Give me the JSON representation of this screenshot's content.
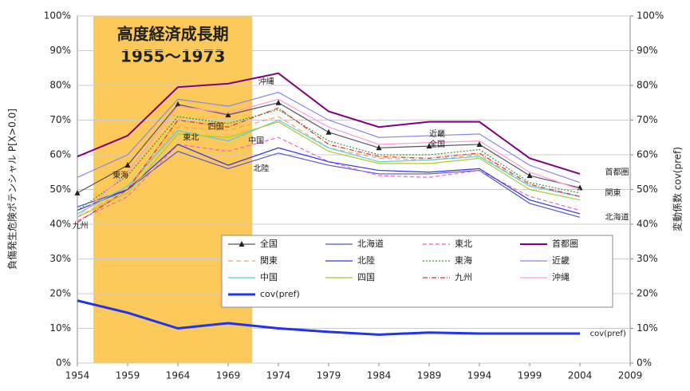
{
  "chart_data": {
    "type": "line",
    "y_label": "負傷発生危険ポテンシャル P[X>0.0]",
    "y2_label": "変動係数 cov(pref)",
    "highlight": {
      "title": "高度経済成長期",
      "subtitle": "1955～1973",
      "color": "#fbc85a",
      "xlim": [
        1955.6,
        1971.4
      ]
    },
    "x": [
      1954,
      1959,
      1964,
      1969,
      1974,
      1979,
      1984,
      1989,
      1994,
      1999,
      2004
    ],
    "xlim": [
      1954,
      2009
    ],
    "xticks": [
      1954,
      1959,
      1964,
      1969,
      1974,
      1979,
      1984,
      1989,
      1994,
      1999,
      2004,
      2009
    ],
    "ylim": [
      0,
      100
    ],
    "yticks": [
      {
        "value": 0,
        "label": "0%"
      },
      {
        "value": 10,
        "label": "10%"
      },
      {
        "value": 20,
        "label": "20%"
      },
      {
        "value": 30,
        "label": "30%"
      },
      {
        "value": 40,
        "label": "40%"
      },
      {
        "value": 50,
        "label": "50%"
      },
      {
        "value": 60,
        "label": "60%"
      },
      {
        "value": 70,
        "label": "70%"
      },
      {
        "value": 80,
        "label": "80%"
      },
      {
        "value": 90,
        "label": "90%"
      },
      {
        "value": 100,
        "label": "100%"
      }
    ],
    "y2lim": [
      0,
      100
    ],
    "y2ticks": [
      {
        "value": 0,
        "label": "0%"
      },
      {
        "value": 10,
        "label": "10%"
      },
      {
        "value": 20,
        "label": "20%"
      },
      {
        "value": 30,
        "label": "30%"
      },
      {
        "value": 40,
        "label": "40%"
      },
      {
        "value": 50,
        "label": "50%"
      },
      {
        "value": 60,
        "label": "60%"
      },
      {
        "value": 70,
        "label": "70%"
      },
      {
        "value": 80,
        "label": "80%"
      },
      {
        "value": 90,
        "label": "90%"
      },
      {
        "value": 100,
        "label": "100%"
      }
    ],
    "series": [
      {
        "name": "全国",
        "color": "#555555",
        "marker": "triangle",
        "values": [
          49,
          57,
          74.5,
          71.5,
          75,
          66.5,
          62,
          62.5,
          63,
          54,
          50.5
        ]
      },
      {
        "name": "北海道",
        "color": "#5555cc",
        "values": [
          45,
          50,
          61,
          56,
          60.5,
          57,
          54.5,
          54.5,
          55.5,
          46,
          42
        ]
      },
      {
        "name": "東北",
        "color": "#ee66cc",
        "dash": "5,3",
        "values": [
          41,
          48,
          63,
          61,
          65,
          58,
          54,
          53.5,
          55.5,
          48,
          44
        ]
      },
      {
        "name": "首都圏",
        "color": "#800080",
        "width": 2,
        "values": [
          59.5,
          65.5,
          79.5,
          80.5,
          83.5,
          72.5,
          68,
          69.5,
          69.5,
          59,
          54.5
        ]
      },
      {
        "name": "関東",
        "color": "#f4a460",
        "dash": "6,4",
        "values": [
          42,
          50,
          68,
          67,
          71,
          62,
          59,
          58.5,
          60,
          51,
          48
        ]
      },
      {
        "name": "北陸",
        "color": "#3333dd",
        "values": [
          44,
          50,
          63,
          57,
          62,
          58,
          55.5,
          55,
          56,
          47,
          43
        ]
      },
      {
        "name": "東海",
        "color": "#339933",
        "dash": "2,2",
        "values": [
          44,
          54,
          71,
          69,
          73,
          64,
          60,
          60,
          61.5,
          52,
          49
        ]
      },
      {
        "name": "近畿",
        "color": "#8888ee",
        "values": [
          53.5,
          60,
          76,
          74,
          78,
          70,
          65,
          65.5,
          66,
          57,
          52
        ]
      },
      {
        "name": "中国",
        "color": "#55ccdd",
        "values": [
          43,
          51,
          67,
          64,
          70,
          62,
          58,
          58.5,
          59.5,
          51,
          48
        ]
      },
      {
        "name": "四国",
        "color": "#aacc33",
        "values": [
          42,
          49,
          66,
          65,
          69.5,
          61,
          57.5,
          57.5,
          59,
          50,
          47
        ]
      },
      {
        "name": "九州",
        "color": "#dd3333",
        "dash": "6,2,1,2",
        "values": [
          40.5,
          50,
          70,
          68,
          73.5,
          63,
          59.5,
          59,
          60.5,
          51.5,
          48
        ]
      },
      {
        "name": "沖縄",
        "color": "#ff99dd",
        "values": [
          42,
          55,
          74,
          72,
          76,
          68,
          63,
          63.5,
          64,
          55,
          50
        ]
      },
      {
        "name": "cov(pref)",
        "color": "#2233ee",
        "width": 3,
        "axis": "y2",
        "values": [
          18,
          14.5,
          10,
          11.5,
          10,
          9,
          8.2,
          8.8,
          8.5,
          8.5,
          8.5
        ]
      }
    ],
    "annotations": [
      "沖縄",
      "近畿",
      "全国",
      "首都圏",
      "関東",
      "北海道",
      "四国",
      "東北",
      "中国",
      "北陸",
      "東海",
      "九州",
      "cov(pref)"
    ]
  }
}
